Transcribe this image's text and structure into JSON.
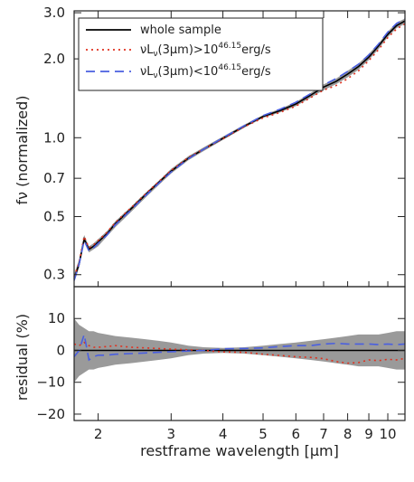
{
  "chart_data": [
    {
      "type": "line",
      "panel": "top",
      "xlabel": "restframe wavelength [μm]",
      "ylabel": "fν (normalized)",
      "xscale": "log",
      "yscale": "log",
      "xlim": [
        1.75,
        11.0
      ],
      "ylim": [
        0.27,
        3.05
      ],
      "yticks": [
        0.3,
        0.5,
        0.7,
        1.0,
        2.0,
        3.0
      ],
      "ytick_labels": [
        "0.3",
        "0.5",
        "0.7",
        "1.0",
        "2.0",
        "3.0"
      ],
      "legend_position": "top-left",
      "legend": {
        "whole": "whole sample",
        "high_prefix": "νL",
        "high_sub": "ν",
        "high_mid": "(3μm)>10",
        "high_sup": "46.15",
        "high_suffix": "erg/s",
        "low_prefix": "νL",
        "low_sub": "ν",
        "low_mid": "(3μm)<10",
        "low_sup": "46.15",
        "low_suffix": "erg/s"
      },
      "x": [
        1.75,
        1.8,
        1.85,
        1.9,
        1.95,
        2.0,
        2.1,
        2.2,
        2.4,
        2.6,
        2.8,
        3.0,
        3.3,
        3.6,
        4.0,
        4.5,
        5.0,
        5.5,
        6.0,
        6.5,
        7.0,
        7.5,
        8.0,
        8.5,
        9.0,
        9.5,
        10.0,
        10.5,
        11.0
      ],
      "band": {
        "lower": [
          0.28,
          0.32,
          0.4,
          0.365,
          0.375,
          0.385,
          0.42,
          0.455,
          0.52,
          0.59,
          0.66,
          0.73,
          0.82,
          0.89,
          0.98,
          1.09,
          1.19,
          1.25,
          1.32,
          1.42,
          1.52,
          1.6,
          1.7,
          1.82,
          1.98,
          2.18,
          2.42,
          2.62,
          2.72
        ],
        "upper": [
          0.3,
          0.345,
          0.425,
          0.385,
          0.395,
          0.41,
          0.44,
          0.48,
          0.545,
          0.615,
          0.685,
          0.76,
          0.85,
          0.92,
          1.01,
          1.12,
          1.22,
          1.29,
          1.37,
          1.48,
          1.6,
          1.68,
          1.8,
          1.92,
          2.09,
          2.29,
          2.54,
          2.75,
          2.85
        ]
      },
      "series": [
        {
          "name": "whole sample",
          "color": "#000000",
          "style": "solid",
          "values": [
            0.29,
            0.33,
            0.41,
            0.375,
            0.385,
            0.4,
            0.43,
            0.47,
            0.535,
            0.605,
            0.675,
            0.745,
            0.835,
            0.905,
            0.995,
            1.105,
            1.205,
            1.27,
            1.345,
            1.45,
            1.56,
            1.64,
            1.75,
            1.87,
            2.03,
            2.24,
            2.48,
            2.68,
            2.79
          ]
        },
        {
          "name": "νLν(3μm)>10^46.15 erg/s",
          "color": "#e0301e",
          "style": "dotted",
          "values": [
            0.295,
            0.335,
            0.42,
            0.38,
            0.39,
            0.405,
            0.435,
            0.475,
            0.54,
            0.61,
            0.68,
            0.75,
            0.84,
            0.905,
            0.99,
            1.1,
            1.19,
            1.25,
            1.32,
            1.42,
            1.52,
            1.58,
            1.68,
            1.8,
            1.97,
            2.17,
            2.41,
            2.6,
            2.72
          ]
        },
        {
          "name": "νLν(3μm)<10^46.15 erg/s",
          "color": "#4a5fe0",
          "style": "dashed",
          "values": [
            0.285,
            0.33,
            0.405,
            0.37,
            0.38,
            0.395,
            0.425,
            0.465,
            0.53,
            0.6,
            0.67,
            0.74,
            0.83,
            0.905,
            1.0,
            1.11,
            1.215,
            1.285,
            1.365,
            1.47,
            1.59,
            1.68,
            1.79,
            1.91,
            2.07,
            2.28,
            2.53,
            2.73,
            2.84
          ]
        }
      ]
    },
    {
      "type": "line",
      "panel": "bottom",
      "xlabel": "restframe wavelength [μm]",
      "ylabel": "residual (%)",
      "xscale": "log",
      "xlim": [
        1.75,
        11.0
      ],
      "ylim": [
        -22,
        20
      ],
      "xticks": [
        2,
        3,
        4,
        5,
        6,
        7,
        8,
        9,
        10
      ],
      "xtick_labels": [
        "2",
        "3",
        "4",
        "5",
        "6",
        "7",
        "8",
        "9",
        "10"
      ],
      "yticks": [
        -20,
        -10,
        0,
        10
      ],
      "ytick_labels": [
        "−20",
        "−10",
        "0",
        "10"
      ],
      "x": [
        1.75,
        1.8,
        1.85,
        1.9,
        1.95,
        2.0,
        2.1,
        2.2,
        2.4,
        2.6,
        2.8,
        3.0,
        3.3,
        3.6,
        4.0,
        4.5,
        5.0,
        5.5,
        6.0,
        6.5,
        7.0,
        7.5,
        8.0,
        8.5,
        9.0,
        9.5,
        10.0,
        10.5,
        11.0
      ],
      "band": {
        "lower": [
          -10,
          -8,
          -7,
          -6,
          -6,
          -5.5,
          -5,
          -4.5,
          -4,
          -3.5,
          -3,
          -2.5,
          -1.5,
          -1,
          -0.8,
          -1,
          -1.5,
          -2,
          -2.5,
          -3,
          -3.5,
          -4,
          -4.5,
          -5,
          -5,
          -5,
          -5.5,
          -6,
          -6
        ],
        "upper": [
          10,
          8,
          7,
          6,
          6,
          5.5,
          5,
          4.5,
          4,
          3.5,
          3,
          2.5,
          1.5,
          1,
          0.8,
          1,
          1.5,
          2,
          2.5,
          3,
          3.5,
          4,
          4.5,
          5,
          5,
          5,
          5.5,
          6,
          6
        ]
      },
      "series": [
        {
          "name": "whole sample",
          "color": "#000000",
          "style": "solid",
          "values": [
            0,
            0,
            0,
            0,
            0,
            0,
            0,
            0,
            0,
            0,
            0,
            0,
            0,
            0,
            0,
            0,
            0,
            0,
            0,
            0,
            0,
            0,
            0,
            0,
            0,
            0,
            0,
            0,
            0
          ]
        },
        {
          "name": "νLν(3μm)>10^46.15 erg/s",
          "color": "#e0301e",
          "style": "dotted",
          "values": [
            2,
            1.5,
            2.5,
            1.5,
            1,
            1,
            1.2,
            1.5,
            1,
            0.8,
            0.6,
            0.4,
            0.2,
            0.0,
            -0.5,
            -0.6,
            -1.2,
            -1.6,
            -2,
            -2.2,
            -2.6,
            -3.5,
            -4,
            -3.8,
            -3,
            -3.2,
            -2.8,
            -3,
            -2.5
          ]
        },
        {
          "name": "νLν(3μm)<10^46.15 erg/s",
          "color": "#4a5fe0",
          "style": "dashed",
          "values": [
            -2,
            0,
            5,
            -3,
            -2,
            -1.5,
            -1.5,
            -1.2,
            -1,
            -0.8,
            -0.6,
            -0.4,
            -0.2,
            0.0,
            0.5,
            0.6,
            0.8,
            1.2,
            1.5,
            1.5,
            2,
            2.2,
            2,
            2,
            2,
            1.8,
            2,
            1.8,
            2
          ]
        }
      ]
    }
  ]
}
